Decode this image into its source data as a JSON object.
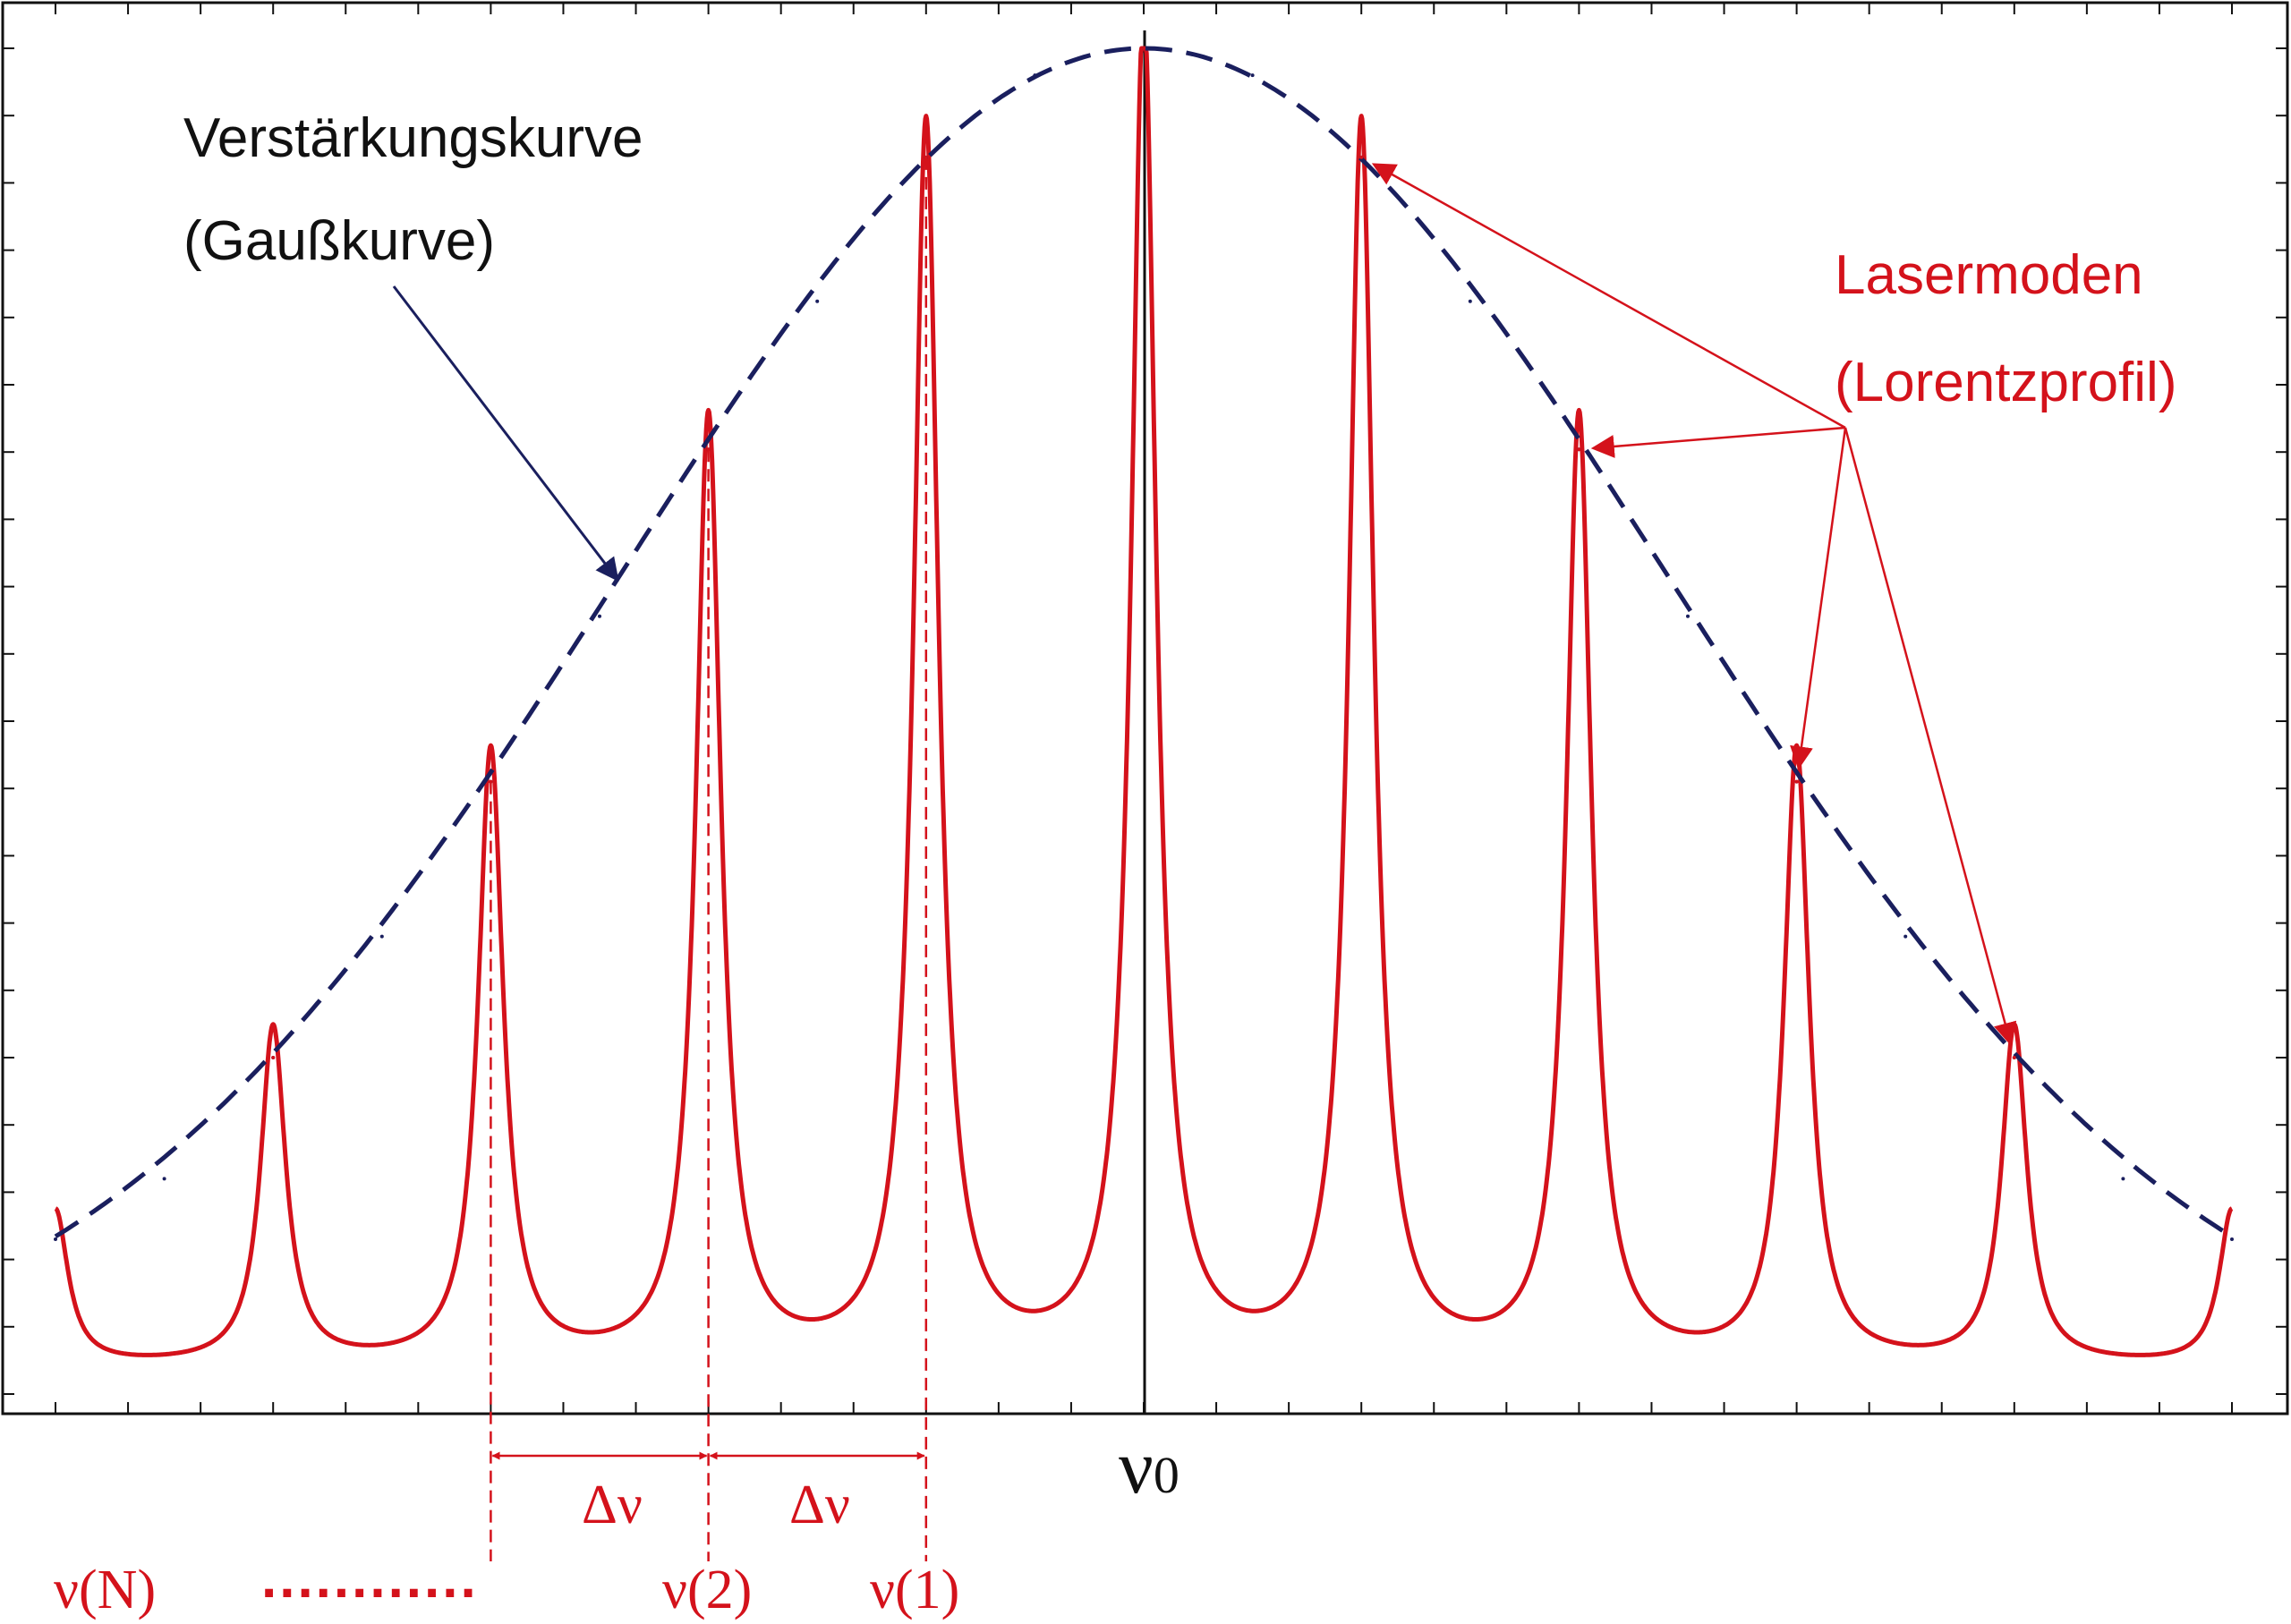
{
  "chart_data": {
    "type": "line",
    "x_min": -5,
    "x_max": 5,
    "ylim": [
      0,
      1
    ],
    "grid": false,
    "center_label": "ν",
    "center_label_sub": "0",
    "mode_positions": [
      -4,
      -3,
      -2,
      -1,
      0,
      1,
      2,
      3,
      4
    ],
    "series": [
      {
        "name": "",
        "role": "gain-envelope",
        "x": [
          -5,
          -4.5,
          -4,
          -3.5,
          -3,
          -2.5,
          -2,
          -1.5,
          -1,
          -0.5,
          0,
          0.5,
          1,
          1.5,
          2,
          2.5,
          3,
          3.5,
          4,
          4.5,
          5
        ],
        "values": [
          0.115,
          0.16,
          0.25,
          0.34,
          0.455,
          0.578,
          0.702,
          0.812,
          0.919,
          0.98,
          1.0,
          0.98,
          0.919,
          0.812,
          0.702,
          0.578,
          0.455,
          0.34,
          0.25,
          0.16,
          0.115
        ],
        "color": "#1a1f5e",
        "style": "dashed"
      },
      {
        "name": "",
        "role": "laser-modes",
        "peaks_x": [
          -4,
          -3,
          -2,
          -1,
          0,
          1,
          2,
          3,
          4
        ],
        "peaks_y": [
          0.25,
          0.455,
          0.702,
          0.919,
          1.0,
          0.919,
          0.702,
          0.455,
          0.25
        ],
        "edge_value": 0.115,
        "color": "#d4121b",
        "style": "solid"
      }
    ],
    "annotations": {
      "gain_label_line1": "Verstärkungskurve",
      "gain_label_line2": "(Gaußkurve)",
      "modes_label_line1": "Lasermoden",
      "modes_label_line2": "(Lorentzprofil)",
      "spacing_label": "Δν",
      "nu_n": "ν(N)",
      "nu_2": "ν(2)",
      "nu_1": "ν(1)",
      "dots": "............",
      "mode_arrow_targets": [
        1,
        2,
        3,
        4
      ],
      "spacing_markers": [
        [
          -3,
          -2
        ],
        [
          -2,
          -1
        ]
      ]
    },
    "colors": {
      "envelope": "#1a1f5e",
      "modes": "#d4121b",
      "axis": "#111111"
    }
  }
}
